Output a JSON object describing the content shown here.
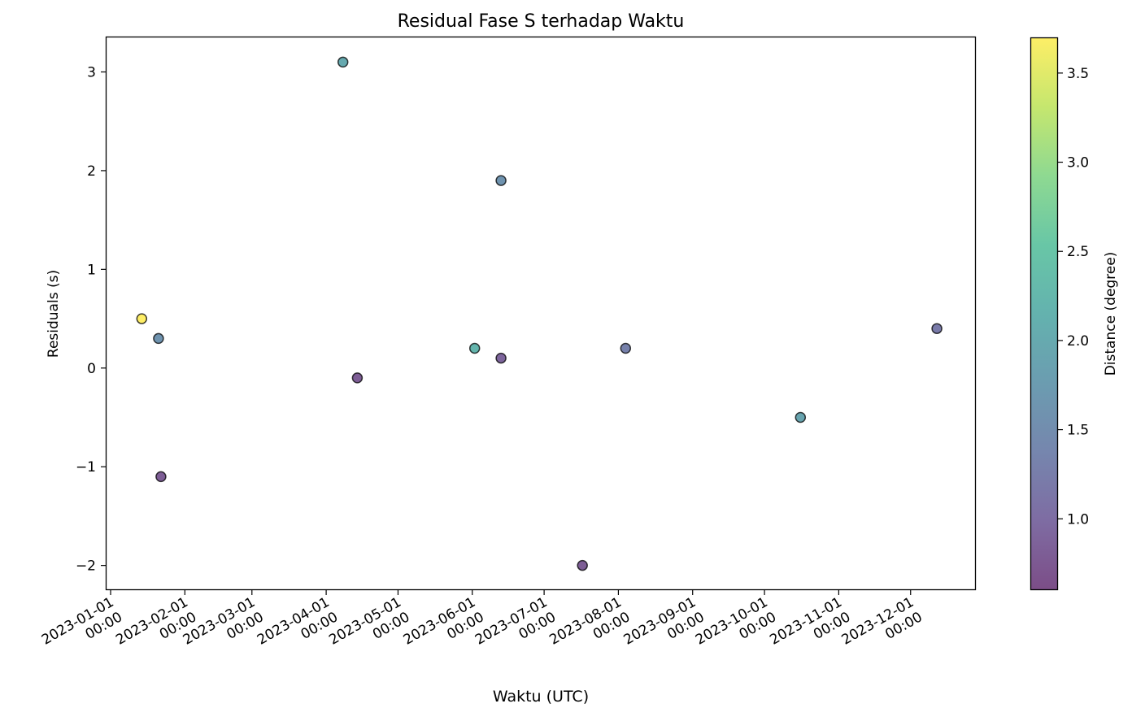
{
  "chart_data": {
    "type": "scatter",
    "title": "Residual Fase S terhadap Waktu",
    "xlabel": "Waktu (UTC)",
    "ylabel": "Residuals (s)",
    "xlim": [
      "2022-12-29T23:00",
      "2023-12-28T06:00"
    ],
    "ylim": [
      -2.25,
      3.35
    ],
    "grid": false,
    "xticks": [
      {
        "date": "2023-01-01",
        "line1": "2023-01-01",
        "line2": "00:00"
      },
      {
        "date": "2023-02-01",
        "line1": "2023-02-01",
        "line2": "00:00"
      },
      {
        "date": "2023-03-01",
        "line1": "2023-03-01",
        "line2": "00:00"
      },
      {
        "date": "2023-04-01",
        "line1": "2023-04-01",
        "line2": "00:00"
      },
      {
        "date": "2023-05-01",
        "line1": "2023-05-01",
        "line2": "00:00"
      },
      {
        "date": "2023-06-01",
        "line1": "2023-06-01",
        "line2": "00:00"
      },
      {
        "date": "2023-07-01",
        "line1": "2023-07-01",
        "line2": "00:00"
      },
      {
        "date": "2023-08-01",
        "line1": "2023-08-01",
        "line2": "00:00"
      },
      {
        "date": "2023-09-01",
        "line1": "2023-09-01",
        "line2": "00:00"
      },
      {
        "date": "2023-10-01",
        "line1": "2023-10-01",
        "line2": "00:00"
      },
      {
        "date": "2023-11-01",
        "line1": "2023-11-01",
        "line2": "00:00"
      },
      {
        "date": "2023-12-01",
        "line1": "2023-12-01",
        "line2": "00:00"
      }
    ],
    "yticks": [
      {
        "value": -2,
        "label": "−2"
      },
      {
        "value": -1,
        "label": "−1"
      },
      {
        "value": 0,
        "label": "0"
      },
      {
        "value": 1,
        "label": "1"
      },
      {
        "value": 2,
        "label": "2"
      },
      {
        "value": 3,
        "label": "3"
      }
    ],
    "points": [
      {
        "x": "2023-01-14",
        "y": 0.5,
        "distance": 3.7
      },
      {
        "x": "2023-01-21",
        "y": 0.3,
        "distance": 1.6
      },
      {
        "x": "2023-01-22",
        "y": -1.1,
        "distance": 0.8
      },
      {
        "x": "2023-04-08",
        "y": 3.1,
        "distance": 2.0
      },
      {
        "x": "2023-04-14",
        "y": -0.1,
        "distance": 0.8
      },
      {
        "x": "2023-06-02",
        "y": 0.2,
        "distance": 2.2
      },
      {
        "x": "2023-06-13",
        "y": 0.1,
        "distance": 0.9
      },
      {
        "x": "2023-06-13",
        "y": 1.9,
        "distance": 1.6
      },
      {
        "x": "2023-07-17",
        "y": -2.0,
        "distance": 0.8
      },
      {
        "x": "2023-08-04",
        "y": 0.2,
        "distance": 1.3
      },
      {
        "x": "2023-10-16",
        "y": -0.5,
        "distance": 1.9
      },
      {
        "x": "2023-12-12",
        "y": 0.4,
        "distance": 1.2
      }
    ],
    "colorbar": {
      "label": "Distance (degree)",
      "colormap": "viridis",
      "range": [
        0.6,
        3.7
      ],
      "ticks": [
        {
          "value": 1.0,
          "label": "1.0"
        },
        {
          "value": 1.5,
          "label": "1.5"
        },
        {
          "value": 2.0,
          "label": "2.0"
        },
        {
          "value": 2.5,
          "label": "2.5"
        },
        {
          "value": 3.0,
          "label": "3.0"
        },
        {
          "value": 3.5,
          "label": "3.5"
        }
      ]
    },
    "marker_edge_color": "#000000",
    "marker_alpha": 0.7
  }
}
